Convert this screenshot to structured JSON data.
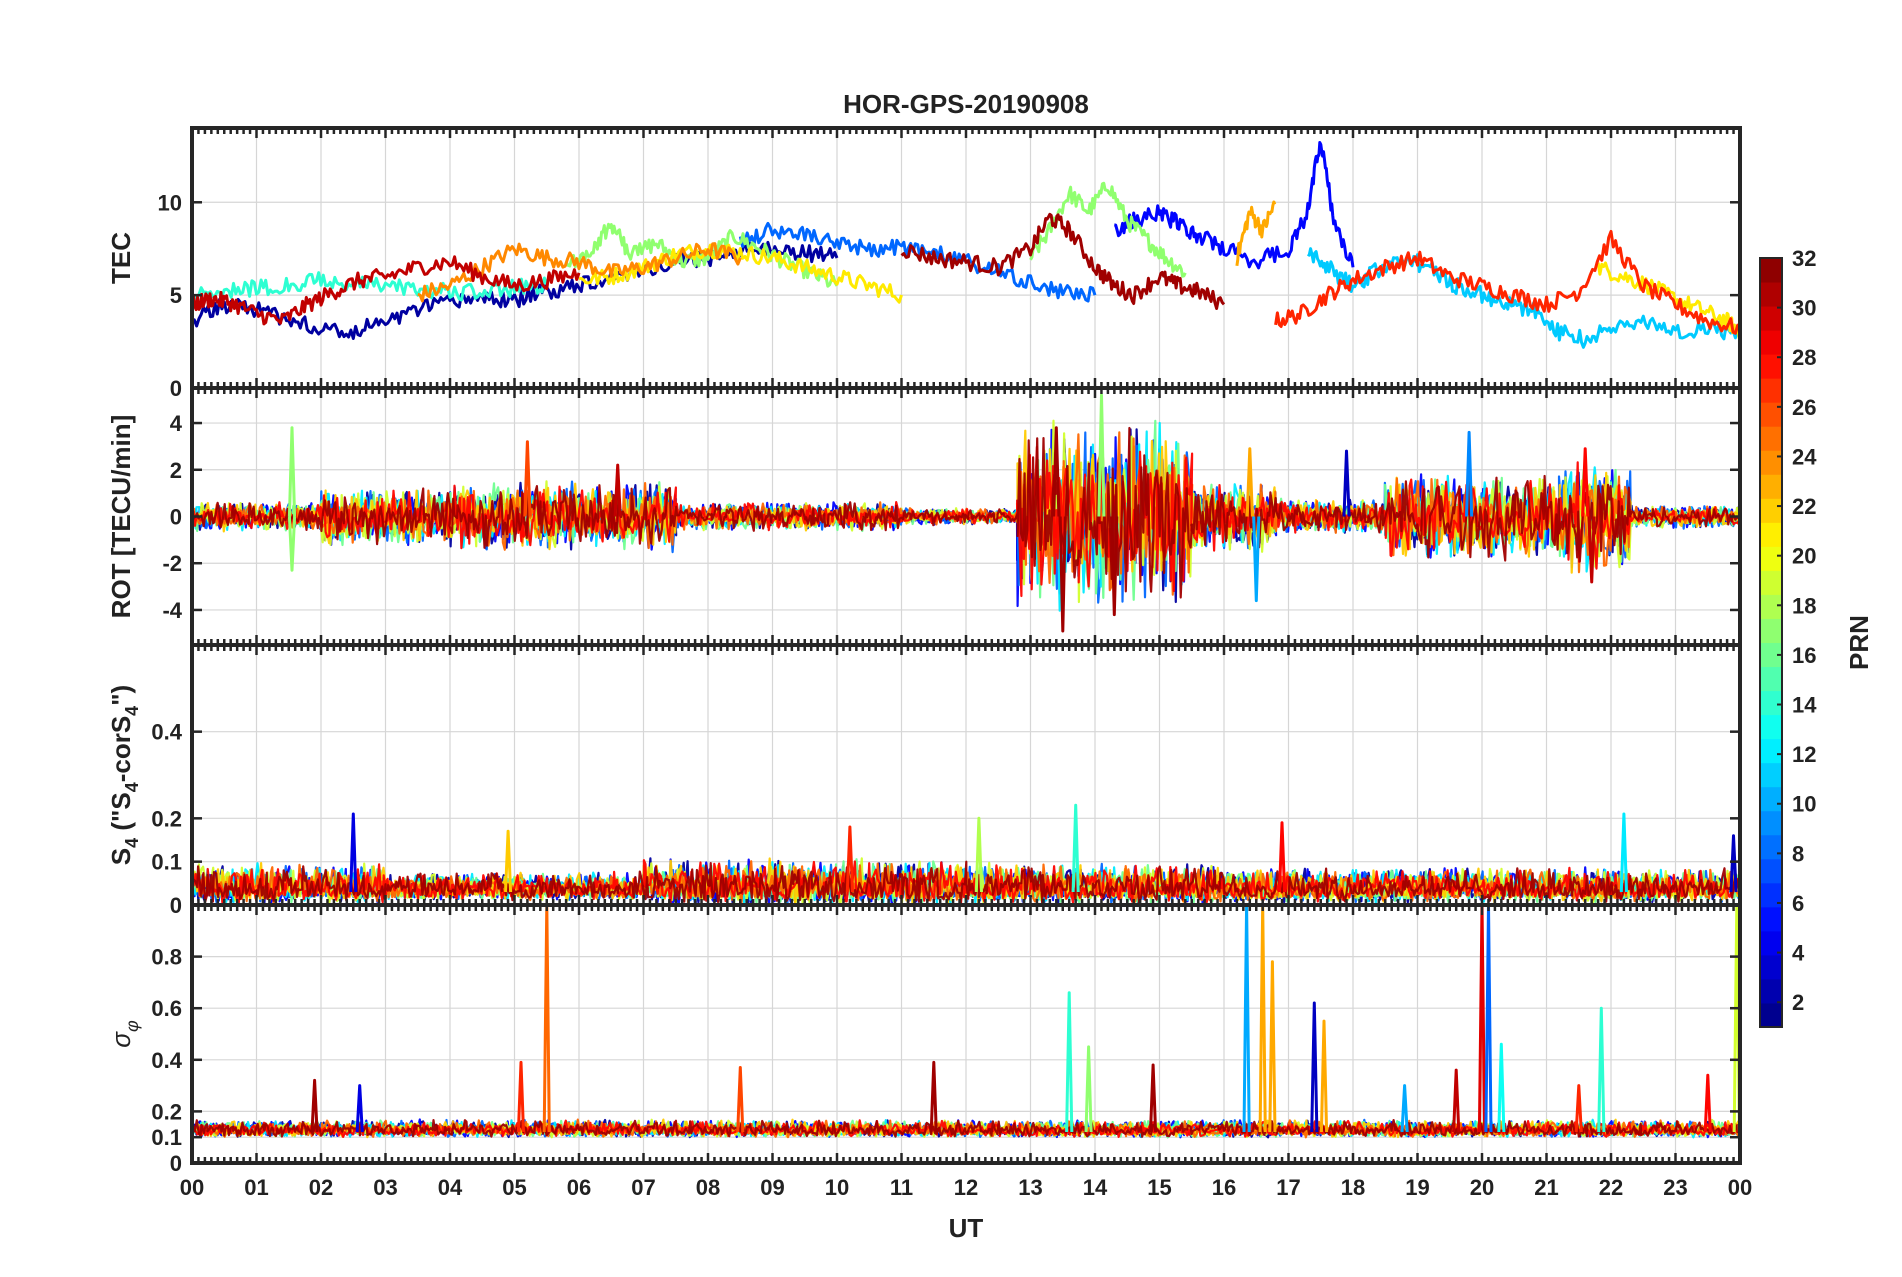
{
  "chart_data": {
    "type": "line",
    "title": "HOR-GPS-20190908",
    "xlabel": "UT",
    "xlim": [
      0,
      24
    ],
    "x_tick_labels": [
      "00",
      "01",
      "02",
      "03",
      "04",
      "05",
      "06",
      "07",
      "08",
      "09",
      "10",
      "11",
      "12",
      "13",
      "14",
      "15",
      "16",
      "17",
      "18",
      "19",
      "20",
      "21",
      "22",
      "23",
      "00"
    ],
    "colorbar": {
      "label": "PRN",
      "range": [
        1,
        32
      ],
      "tick_labels": [
        "2",
        "4",
        "6",
        "8",
        "10",
        "12",
        "14",
        "16",
        "18",
        "20",
        "22",
        "24",
        "26",
        "28",
        "30",
        "32"
      ],
      "colormap": "jet"
    },
    "panels": [
      {
        "id": "tec",
        "ylabel": "TEC",
        "ylim": [
          0,
          14
        ],
        "y_ticks": [
          0,
          5,
          10
        ],
        "y_tick_labels": [
          "0",
          "5",
          "10"
        ],
        "series": [
          {
            "prn": 2,
            "x": [
              0,
              0.5,
              1,
              1.5,
              2,
              2.5,
              3,
              3.5,
              4,
              4.5,
              5,
              5.5,
              6,
              6.5,
              7,
              7.5,
              8,
              8.5,
              9,
              9.5,
              10
            ],
            "y": [
              3.6,
              4.5,
              4.2,
              3.6,
              3.3,
              3.0,
              3.6,
              4.2,
              4.6,
              4.9,
              4.7,
              5.2,
              5.6,
              6.0,
              6.4,
              6.8,
              7.0,
              7.4,
              7.5,
              7.3,
              7.0
            ]
          },
          {
            "prn": 5,
            "x": [
              14.3,
              14.6,
              15,
              15.3,
              15.6,
              16,
              16.5,
              17,
              17.3,
              17.5,
              17.7,
              18
            ],
            "y": [
              8.5,
              9.0,
              9.5,
              8.8,
              8.2,
              7.5,
              6.8,
              7.5,
              9.5,
              13.5,
              9.0,
              6.5
            ]
          },
          {
            "prn": 8,
            "x": [
              8.5,
              9,
              9.5,
              10,
              10.5,
              11,
              11.5,
              12,
              12.5,
              13,
              13.5,
              14
            ],
            "y": [
              7.8,
              8.6,
              8.2,
              7.7,
              7.5,
              7.6,
              7.3,
              6.8,
              6.2,
              5.6,
              5.2,
              5.0
            ]
          },
          {
            "prn": 11,
            "x": [
              17.3,
              17.6,
              18,
              18.4,
              18.8,
              19.2,
              19.6,
              20,
              20.4,
              20.8,
              21.2,
              21.6,
              22,
              22.5,
              23,
              23.5,
              24
            ],
            "y": [
              7.2,
              6.5,
              5.5,
              6.4,
              7.0,
              6.5,
              5.5,
              5.0,
              4.5,
              4.2,
              3.0,
              2.6,
              3.2,
              3.6,
              3.0,
              3.3,
              2.8
            ]
          },
          {
            "prn": 14,
            "x": [
              0,
              0.5,
              1,
              1.5,
              2,
              2.5,
              3,
              3.5,
              4,
              4.5,
              5,
              5.5
            ],
            "y": [
              5.0,
              5.3,
              5.4,
              5.5,
              5.8,
              5.6,
              5.5,
              5.3,
              5.2,
              5.1,
              5.4,
              5.6
            ]
          },
          {
            "prn": 17,
            "x": [
              5.8,
              6.2,
              6.5,
              6.8,
              7.2,
              7.6,
              8,
              8.4,
              8.8,
              9.2,
              9.6,
              10
            ],
            "y": [
              6.5,
              7.5,
              8.8,
              7.2,
              7.8,
              6.8,
              7.0,
              8.2,
              7.5,
              6.8,
              6.2,
              5.5
            ]
          },
          {
            "prn": 17,
            "x": [
              13,
              13.3,
              13.6,
              13.9,
              14.2,
              14.5,
              14.8,
              15.1,
              15.4
            ],
            "y": [
              7.0,
              8.5,
              10.5,
              9.5,
              11.0,
              9.0,
              8.0,
              7.0,
              6.2
            ]
          },
          {
            "prn": 21,
            "x": [
              6,
              6.5,
              7,
              7.5,
              8,
              8.5,
              9,
              9.5,
              10,
              10.5,
              11
            ],
            "y": [
              5.8,
              6.0,
              6.5,
              7.2,
              7.5,
              7.3,
              7.0,
              6.5,
              6.0,
              5.5,
              5.0
            ]
          },
          {
            "prn": 21,
            "x": [
              21.8,
              22.2,
              22.6,
              23,
              23.4,
              23.8,
              24
            ],
            "y": [
              6.5,
              6.0,
              5.5,
              4.8,
              4.2,
              3.6,
              3.0
            ]
          },
          {
            "prn": 23,
            "x": [
              16.2,
              16.4,
              16.6,
              16.8
            ],
            "y": [
              7.0,
              9.5,
              8.5,
              10.0
            ]
          },
          {
            "prn": 24,
            "x": [
              3.5,
              4,
              4.5,
              5,
              5.5,
              6,
              6.5,
              7,
              7.5,
              8,
              8.5
            ],
            "y": [
              5.0,
              5.5,
              6.5,
              7.5,
              7.0,
              6.8,
              6.2,
              6.5,
              7.0,
              7.5,
              7.0
            ]
          },
          {
            "prn": 27,
            "x": [
              16.8,
              17.2,
              17.6,
              18,
              18.5,
              19,
              19.5,
              20,
              20.5,
              21,
              21.5,
              22,
              22.5,
              23,
              23.5,
              24
            ],
            "y": [
              3.6,
              4.0,
              5.0,
              5.8,
              6.5,
              7.0,
              6.0,
              5.5,
              5.0,
              4.5,
              5.2,
              8.0,
              5.5,
              4.5,
              3.6,
              3.2
            ]
          },
          {
            "prn": 30,
            "x": [
              0,
              0.3,
              0.6,
              1,
              1.4,
              1.8,
              2.2,
              2.6,
              3,
              3.5,
              4,
              4.5,
              5,
              5.5,
              6
            ],
            "y": [
              4.5,
              4.8,
              4.6,
              4.0,
              3.6,
              4.5,
              5.2,
              5.8,
              6.0,
              6.5,
              6.8,
              6.0,
              5.5,
              5.8,
              6.2
            ]
          },
          {
            "prn": 31,
            "x": [
              11,
              11.5,
              12,
              12.5,
              13,
              13.3,
              13.6,
              14,
              14.3,
              14.6,
              15,
              15.3,
              15.6,
              16
            ],
            "y": [
              7.5,
              7.0,
              6.8,
              6.5,
              7.5,
              9.2,
              8.5,
              6.5,
              5.5,
              5.0,
              6.0,
              5.5,
              5.2,
              4.5
            ]
          }
        ]
      },
      {
        "id": "rot",
        "ylabel": "ROT [TECU/min]",
        "ylim": [
          -5.5,
          5.5
        ],
        "y_ticks": [
          -4,
          -2,
          0,
          2,
          4
        ],
        "y_tick_labels": [
          "-4",
          "-2",
          "0",
          "2",
          "4"
        ],
        "baseline": 0,
        "noise_bands": [
          {
            "x": [
              0,
              2
            ],
            "amp": 0.5
          },
          {
            "x": [
              2,
              4
            ],
            "amp": 1.0
          },
          {
            "x": [
              4,
              7.5
            ],
            "amp": 1.2
          },
          {
            "x": [
              7.5,
              11
            ],
            "amp": 0.5
          },
          {
            "x": [
              11,
              12.8
            ],
            "amp": 0.3
          },
          {
            "x": [
              12.8,
              15.5
            ],
            "amp": 3.2
          },
          {
            "x": [
              15.5,
              16.8
            ],
            "amp": 1.2
          },
          {
            "x": [
              16.8,
              18.5
            ],
            "amp": 0.6
          },
          {
            "x": [
              18.5,
              21.2
            ],
            "amp": 1.5
          },
          {
            "x": [
              21.2,
              22.3
            ],
            "amp": 2.0
          },
          {
            "x": [
              22.3,
              24
            ],
            "amp": 0.4
          }
        ],
        "spikes": [
          {
            "x": 1.55,
            "y": 3.8,
            "prn": 17
          },
          {
            "x": 1.55,
            "y": -2.3,
            "prn": 17
          },
          {
            "x": 5.2,
            "y": 3.2,
            "prn": 26
          },
          {
            "x": 6.6,
            "y": 2.2,
            "prn": 30
          },
          {
            "x": 13.5,
            "y": -4.9,
            "prn": 31
          },
          {
            "x": 13.4,
            "y": 3.8,
            "prn": 31
          },
          {
            "x": 14.1,
            "y": 5.2,
            "prn": 17
          },
          {
            "x": 14.3,
            "y": -4.2,
            "prn": 31
          },
          {
            "x": 16.5,
            "y": -3.6,
            "prn": 10
          },
          {
            "x": 16.4,
            "y": 2.9,
            "prn": 23
          },
          {
            "x": 17.9,
            "y": 2.8,
            "prn": 3
          },
          {
            "x": 19.8,
            "y": 3.6,
            "prn": 9
          },
          {
            "x": 21.7,
            "y": -2.8,
            "prn": 30
          },
          {
            "x": 21.6,
            "y": 2.9,
            "prn": 28
          }
        ]
      },
      {
        "id": "s4",
        "ylabel": "S4 (\"S4-corS4\")",
        "ylim": [
          0,
          0.6
        ],
        "y_ticks": [
          0,
          0.1,
          0.2,
          0.4
        ],
        "y_tick_labels": [
          "0",
          "0.1",
          "0.2",
          "0.4"
        ],
        "baseline": 0.03,
        "noise_bands": [
          {
            "x": [
              0,
              3
            ],
            "amp": 0.07
          },
          {
            "x": [
              3,
              7
            ],
            "amp": 0.05
          },
          {
            "x": [
              7,
              12
            ],
            "amp": 0.08
          },
          {
            "x": [
              12,
              16
            ],
            "amp": 0.07
          },
          {
            "x": [
              16,
              24
            ],
            "amp": 0.06
          }
        ],
        "spikes": [
          {
            "x": 2.5,
            "y": 0.21,
            "prn": 4
          },
          {
            "x": 13.7,
            "y": 0.23,
            "prn": 14
          },
          {
            "x": 12.2,
            "y": 0.2,
            "prn": 18
          },
          {
            "x": 16.9,
            "y": 0.19,
            "prn": 28
          },
          {
            "x": 22.2,
            "y": 0.21,
            "prn": 12
          },
          {
            "x": 10.2,
            "y": 0.18,
            "prn": 27
          },
          {
            "x": 23.9,
            "y": 0.16,
            "prn": 3
          },
          {
            "x": 4.9,
            "y": 0.17,
            "prn": 22
          }
        ]
      },
      {
        "id": "sigma",
        "ylabel": "σφ",
        "ylim": [
          0,
          1
        ],
        "y_ticks": [
          0,
          0.1,
          0.2,
          0.4,
          0.6,
          0.8
        ],
        "y_tick_labels": [
          "0",
          "0.1",
          "0.2",
          "0.4",
          "0.6",
          "0.8"
        ],
        "baseline": 0.12,
        "noise_bands": [
          {
            "x": [
              0,
              24
            ],
            "amp": 0.05
          }
        ],
        "spikes": [
          {
            "x": 1.9,
            "y": 0.32,
            "prn": 31
          },
          {
            "x": 2.6,
            "y": 0.3,
            "prn": 4
          },
          {
            "x": 5.1,
            "y": 0.39,
            "prn": 27
          },
          {
            "x": 5.5,
            "y": 1.0,
            "prn": 25
          },
          {
            "x": 8.5,
            "y": 0.37,
            "prn": 26
          },
          {
            "x": 11.5,
            "y": 0.39,
            "prn": 31
          },
          {
            "x": 13.6,
            "y": 0.66,
            "prn": 14
          },
          {
            "x": 13.9,
            "y": 0.45,
            "prn": 17
          },
          {
            "x": 14.9,
            "y": 0.38,
            "prn": 31
          },
          {
            "x": 16.35,
            "y": 1.0,
            "prn": 10
          },
          {
            "x": 16.6,
            "y": 1.0,
            "prn": 23
          },
          {
            "x": 16.75,
            "y": 0.78,
            "prn": 23
          },
          {
            "x": 17.4,
            "y": 0.62,
            "prn": 3
          },
          {
            "x": 17.55,
            "y": 0.55,
            "prn": 23
          },
          {
            "x": 18.8,
            "y": 0.3,
            "prn": 10
          },
          {
            "x": 19.6,
            "y": 0.36,
            "prn": 30
          },
          {
            "x": 20.0,
            "y": 1.0,
            "prn": 29
          },
          {
            "x": 20.1,
            "y": 1.0,
            "prn": 8
          },
          {
            "x": 20.3,
            "y": 0.46,
            "prn": 13
          },
          {
            "x": 21.5,
            "y": 0.3,
            "prn": 27
          },
          {
            "x": 21.85,
            "y": 0.6,
            "prn": 14
          },
          {
            "x": 23.5,
            "y": 0.34,
            "prn": 28
          },
          {
            "x": 23.95,
            "y": 1.0,
            "prn": 19
          }
        ]
      }
    ]
  }
}
